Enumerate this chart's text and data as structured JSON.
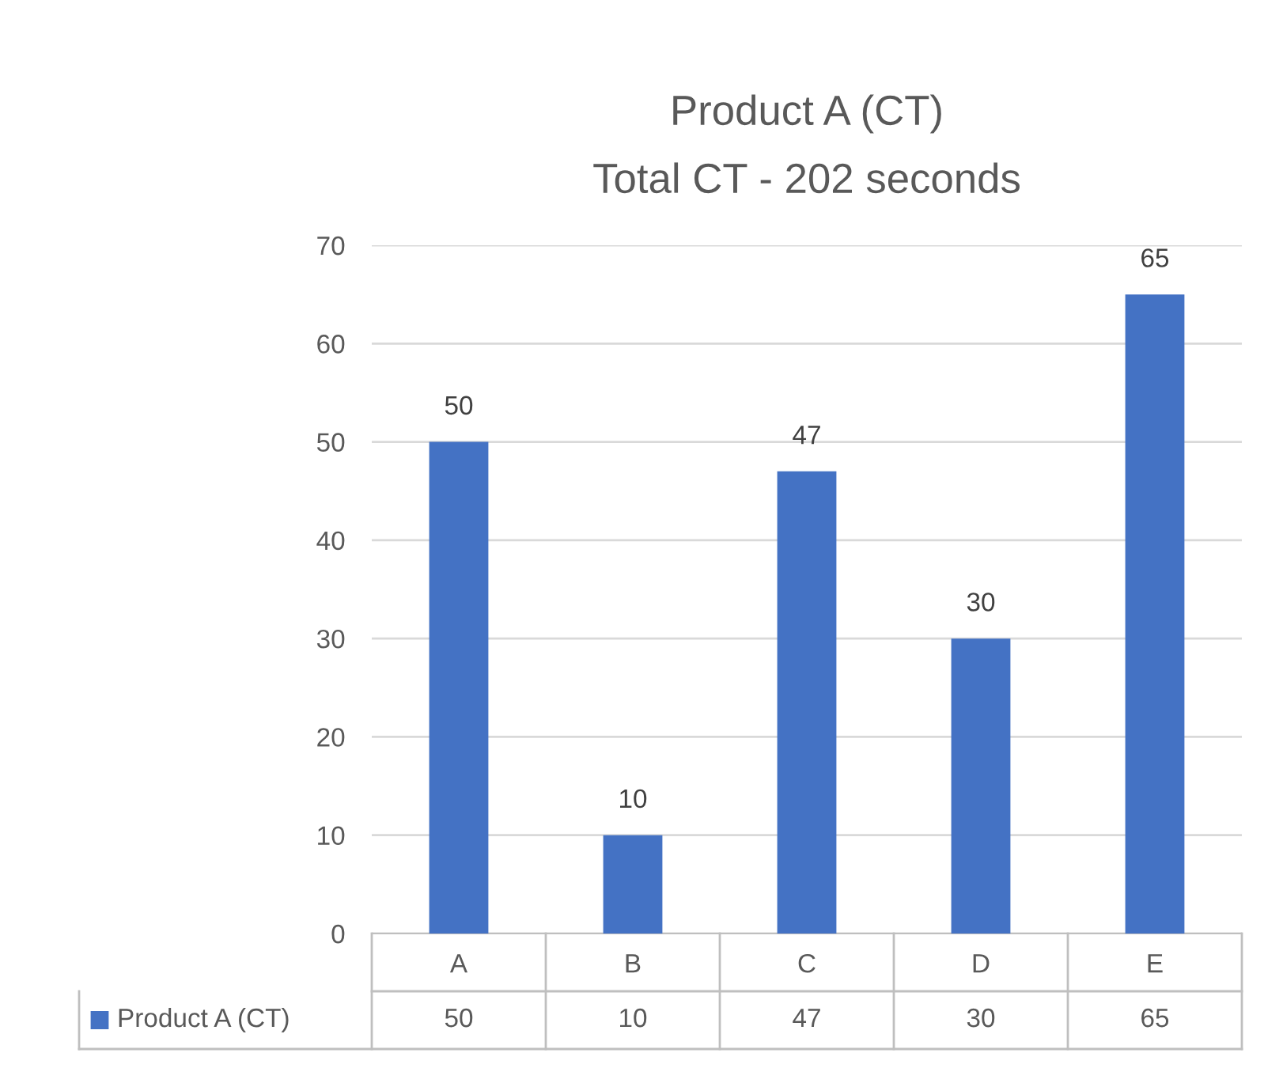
{
  "chart_data": {
    "type": "bar",
    "title": "Product A (CT)",
    "subtitle": "Total CT - 202 seconds",
    "categories": [
      "A",
      "B",
      "C",
      "D",
      "E"
    ],
    "series": [
      {
        "name": "Product A (CT)",
        "color": "#4472c4",
        "values": [
          50,
          10,
          47,
          30,
          65
        ],
        "value_labels": [
          "50",
          "10",
          "47",
          "30",
          "65"
        ]
      }
    ],
    "ylim": [
      0,
      70
    ],
    "yticks": [
      0,
      10,
      20,
      30,
      40,
      50,
      60,
      70
    ],
    "grid": "y",
    "legend": "bottom",
    "annotations": [
      "50",
      "10",
      "47",
      "30",
      "65"
    ]
  }
}
